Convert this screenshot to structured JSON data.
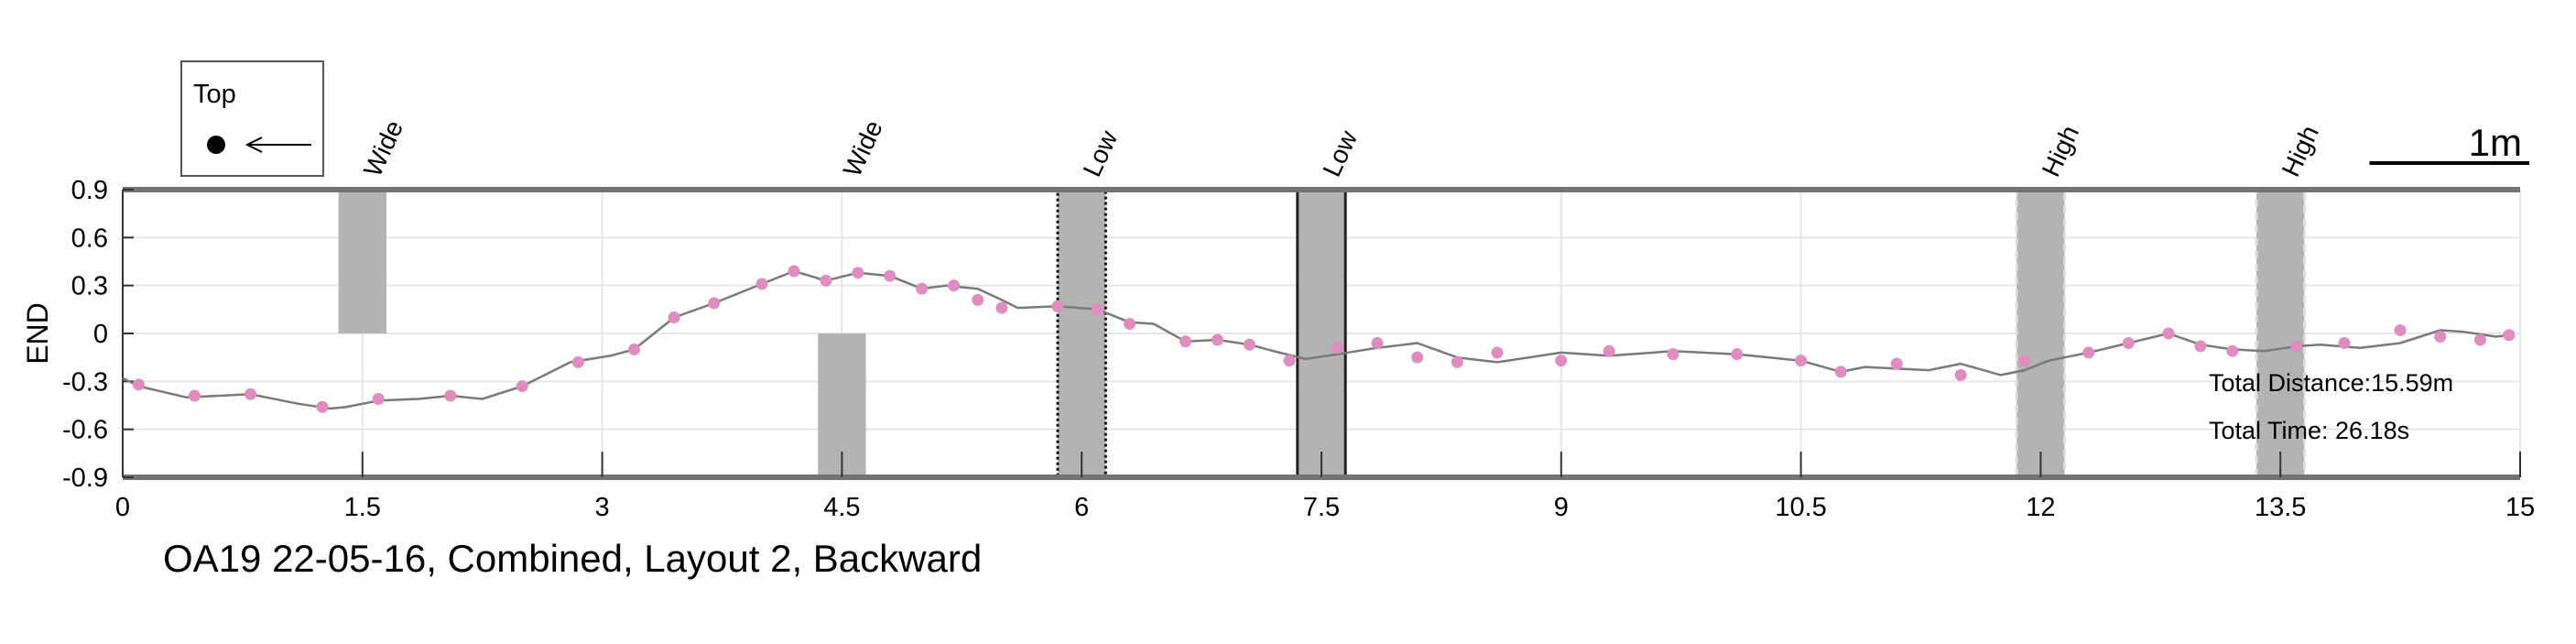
{
  "chart_data": {
    "type": "line",
    "title": "OA19 22-05-16, Combined, Layout 2, Backward",
    "xlabel": "",
    "ylabel": "END",
    "xlim": [
      0,
      15
    ],
    "ylim": [
      -0.9,
      0.9
    ],
    "x_ticks": [
      "0",
      "1.5",
      "3",
      "4.5",
      "6",
      "7.5",
      "9",
      "10.5",
      "12",
      "13.5",
      "15"
    ],
    "x_tick_values": [
      0,
      1.5,
      3,
      4.5,
      6,
      7.5,
      9,
      10.5,
      12,
      13.5,
      15
    ],
    "y_ticks": [
      "0.9",
      "0.6",
      "0.3",
      "0",
      "-0.3",
      "-0.6",
      "-0.9"
    ],
    "y_tick_values": [
      0.9,
      0.6,
      0.3,
      0,
      -0.3,
      -0.6,
      -0.9
    ],
    "grid": true,
    "line_color": "#7a7a7a",
    "marker_color": "#e08cc0",
    "band_color": "#b3b3b3",
    "series": [
      {
        "x": [
          0,
          0.1,
          0.4,
          0.8,
          1.1,
          1.3,
          1.4,
          1.6,
          1.85,
          2.05,
          2.25,
          2.5,
          2.8,
          3.05,
          3.2,
          3.45,
          3.7,
          4.0,
          4.2,
          4.4,
          4.6,
          4.8,
          5.0,
          5.15,
          5.35,
          5.5,
          5.6,
          5.85,
          6.1,
          6.3,
          6.45,
          6.65,
          6.85,
          7.05,
          7.2,
          7.4,
          7.6,
          7.85,
          8.1,
          8.35,
          8.6,
          9.0,
          9.3,
          9.7,
          10.1,
          10.5,
          10.75,
          10.9,
          11.3,
          11.5,
          11.75,
          11.9,
          12.05,
          12.3,
          12.55,
          12.8,
          13.0,
          13.2,
          13.4,
          13.6,
          13.75,
          14.0,
          14.25,
          14.5,
          14.65,
          14.85,
          14.93
        ],
        "y": [
          -0.28,
          -0.33,
          -0.4,
          -0.38,
          -0.44,
          -0.47,
          -0.46,
          -0.42,
          -0.41,
          -0.39,
          -0.41,
          -0.33,
          -0.18,
          -0.14,
          -0.1,
          0.1,
          0.19,
          0.31,
          0.39,
          0.33,
          0.38,
          0.36,
          0.28,
          0.3,
          0.28,
          0.21,
          0.16,
          0.17,
          0.15,
          0.07,
          0.06,
          -0.05,
          -0.04,
          -0.07,
          -0.11,
          -0.16,
          -0.13,
          -0.09,
          -0.06,
          -0.15,
          -0.18,
          -0.12,
          -0.14,
          -0.11,
          -0.13,
          -0.17,
          -0.24,
          -0.21,
          -0.23,
          -0.19,
          -0.26,
          -0.23,
          -0.17,
          -0.12,
          -0.06,
          0.0,
          -0.07,
          -0.1,
          -0.11,
          -0.08,
          -0.07,
          -0.09,
          -0.06,
          0.02,
          0.01,
          -0.02,
          -0.01
        ]
      }
    ],
    "markers": {
      "x": [
        0.1,
        0.45,
        0.8,
        1.25,
        1.6,
        2.05,
        2.5,
        2.85,
        3.2,
        3.45,
        3.7,
        4.0,
        4.2,
        4.4,
        4.6,
        4.8,
        5.0,
        5.2,
        5.35,
        5.5,
        5.85,
        6.1,
        6.3,
        6.65,
        6.85,
        7.05,
        7.3,
        7.6,
        7.85,
        8.1,
        8.35,
        8.6,
        9.0,
        9.3,
        9.7,
        10.1,
        10.5,
        10.75,
        11.1,
        11.5,
        11.9,
        12.3,
        12.55,
        12.8,
        13.0,
        13.2,
        13.6,
        13.9,
        14.25,
        14.5,
        14.75,
        14.93
      ],
      "y": [
        -0.32,
        -0.39,
        -0.38,
        -0.46,
        -0.41,
        -0.39,
        -0.33,
        -0.18,
        -0.1,
        0.1,
        0.19,
        0.31,
        0.39,
        0.33,
        0.38,
        0.36,
        0.28,
        0.3,
        0.21,
        0.16,
        0.17,
        0.15,
        0.06,
        -0.05,
        -0.04,
        -0.07,
        -0.17,
        -0.09,
        -0.06,
        -0.15,
        -0.18,
        -0.12,
        -0.17,
        -0.11,
        -0.13,
        -0.13,
        -0.17,
        -0.24,
        -0.19,
        -0.26,
        -0.17,
        -0.12,
        -0.06,
        0.0,
        -0.08,
        -0.11,
        -0.08,
        -0.06,
        0.02,
        -0.02,
        -0.04,
        -0.01
      ]
    },
    "bands": [
      {
        "label": "Wide",
        "x0": 1.35,
        "x1": 1.65,
        "y0": 0,
        "y1": 0.9,
        "border": "none"
      },
      {
        "label": "Wide",
        "x0": 4.35,
        "x1": 4.65,
        "y0": -0.9,
        "y1": 0,
        "border": "none"
      },
      {
        "label": "Low",
        "x0": 5.85,
        "x1": 6.15,
        "y0": -0.9,
        "y1": 0.9,
        "border": "dotted-dark"
      },
      {
        "label": "Low",
        "x0": 7.35,
        "x1": 7.65,
        "y0": -0.9,
        "y1": 0.9,
        "border": "solid-dark"
      },
      {
        "label": "High",
        "x0": 11.85,
        "x1": 12.15,
        "y0": -0.9,
        "y1": 0.9,
        "border": "dashed-light"
      },
      {
        "label": "High",
        "x0": 13.35,
        "x1": 13.65,
        "y0": -0.9,
        "y1": 0.9,
        "border": "dashed-light"
      }
    ],
    "annotations": {
      "total_distance": "Total Distance:15.59m",
      "total_time": "Total Time: 26.18s",
      "scale_bar_label": "1m",
      "scale_bar_length_x": 1.0
    },
    "legend": {
      "title": "Top",
      "placement": "top-left",
      "symbol": "dot-with-left-arrow"
    }
  }
}
